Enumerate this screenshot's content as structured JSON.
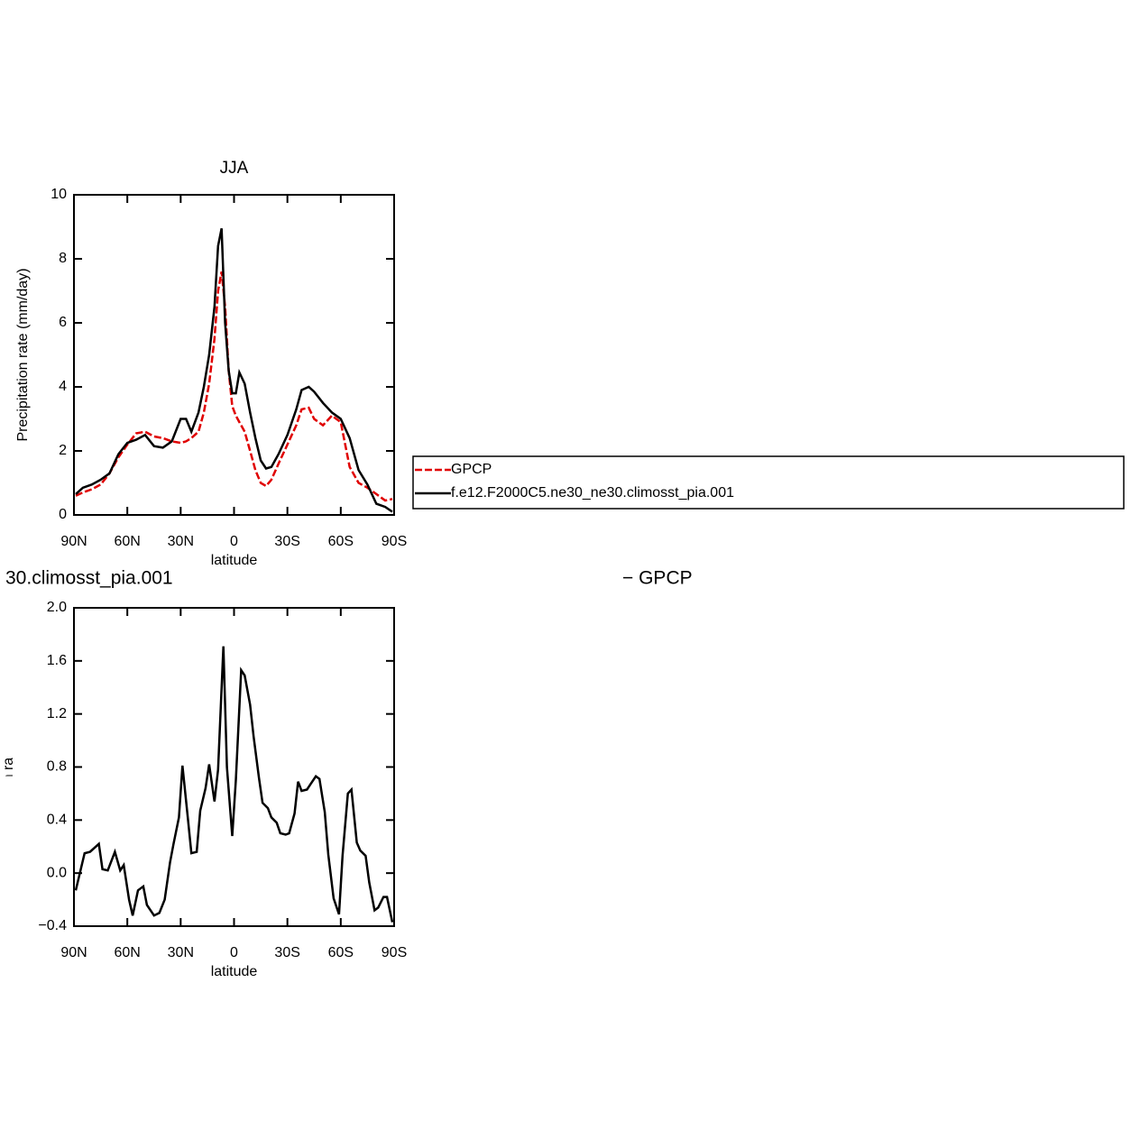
{
  "chart_data": [
    {
      "type": "line",
      "title": "JJA",
      "ylabel": "Precipitation rate (mm/day)",
      "xlabel": "latitude",
      "xlim": [
        90,
        -90
      ],
      "xticks": [
        {
          "value": 90,
          "label": "90N"
        },
        {
          "value": 60,
          "label": "60N"
        },
        {
          "value": 30,
          "label": "30N"
        },
        0,
        {
          "value": -30,
          "label": "30S"
        },
        {
          "value": -60,
          "label": "60S"
        },
        {
          "value": -90,
          "label": "90S"
        }
      ],
      "ylim": [
        0,
        10
      ],
      "yticks": [
        0,
        2,
        4,
        6,
        8,
        10
      ],
      "x": [
        89,
        85,
        80,
        75,
        70,
        65,
        60,
        55,
        50,
        45,
        40,
        35,
        30,
        27,
        24,
        20,
        17,
        14,
        11,
        9,
        7,
        5,
        3,
        1,
        -1,
        -3,
        -6,
        -9,
        -12,
        -15,
        -18,
        -21,
        -25,
        -30,
        -35,
        -38,
        -42,
        -45,
        -50,
        -55,
        -60,
        -65,
        -70,
        -75,
        -80,
        -85,
        -89
      ],
      "series": [
        {
          "name": "GPCP",
          "color": "#e00000",
          "dashed": true,
          "values": [
            0.6,
            0.7,
            0.8,
            0.95,
            1.3,
            1.8,
            2.2,
            2.55,
            2.6,
            2.45,
            2.4,
            2.3,
            2.25,
            2.3,
            2.4,
            2.6,
            3.2,
            4.1,
            5.5,
            7.0,
            7.6,
            6.5,
            4.5,
            3.4,
            3.1,
            2.9,
            2.6,
            2.0,
            1.4,
            1.0,
            0.9,
            1.1,
            1.6,
            2.2,
            2.8,
            3.3,
            3.35,
            3.0,
            2.8,
            3.1,
            2.9,
            1.5,
            1.0,
            0.85,
            0.65,
            0.45,
            0.5
          ]
        },
        {
          "name": "f.e12.F2000C5.ne30_ne30.climosst_pia.001",
          "color": "#000000",
          "dashed": false,
          "values": [
            0.65,
            0.85,
            0.95,
            1.1,
            1.3,
            1.9,
            2.25,
            2.35,
            2.5,
            2.15,
            2.1,
            2.3,
            3.0,
            3.0,
            2.6,
            3.2,
            4.0,
            5.0,
            6.5,
            8.4,
            8.95,
            6.0,
            4.5,
            3.8,
            3.8,
            4.45,
            4.1,
            3.2,
            2.4,
            1.7,
            1.45,
            1.5,
            1.9,
            2.5,
            3.3,
            3.9,
            4.0,
            3.85,
            3.5,
            3.2,
            3.0,
            2.4,
            1.4,
            0.95,
            0.35,
            0.25,
            0.1
          ]
        }
      ]
    },
    {
      "type": "line",
      "title": "30.climosst_pia.001",
      "subtitle": "− GPCP",
      "ylabel": "Precipitation rate (mm/day)",
      "xlabel": "latitude",
      "xlim": [
        90,
        -90
      ],
      "xticks": [
        {
          "value": 90,
          "label": "90N"
        },
        {
          "value": 60,
          "label": "60N"
        },
        {
          "value": 30,
          "label": "30N"
        },
        0,
        {
          "value": -30,
          "label": "30S"
        },
        {
          "value": -60,
          "label": "60S"
        },
        {
          "value": -90,
          "label": "90S"
        }
      ],
      "ylim": [
        -0.4,
        2.0
      ],
      "yticks": [
        {
          "value": -0.4,
          "label": "−0.4"
        },
        {
          "value": 0,
          "label": "0.0"
        },
        0.4,
        0.8,
        1.2,
        1.6,
        {
          "value": 2.0,
          "label": "2.0"
        }
      ],
      "x": [
        89,
        84,
        81,
        76,
        74,
        71,
        67,
        64,
        62,
        59,
        57,
        54,
        51,
        49,
        45,
        42,
        39,
        36,
        34,
        31,
        29,
        26,
        24,
        21,
        19,
        16,
        14,
        11,
        9,
        6,
        4,
        1,
        -1,
        -4,
        -6,
        -9,
        -11,
        -14,
        -16,
        -19,
        -21,
        -24,
        -26,
        -29,
        -31,
        -34,
        -36,
        -38,
        -41,
        -43,
        -46,
        -48,
        -51,
        -53,
        -56,
        -59,
        -61,
        -64,
        -66,
        -69,
        -71,
        -74,
        -76,
        -79,
        -81,
        -84,
        -86,
        -89
      ],
      "series": [
        {
          "color": "#000000",
          "dashed": false,
          "values": [
            -0.13,
            0.15,
            0.16,
            0.22,
            0.03,
            0.02,
            0.16,
            0.02,
            0.06,
            -0.2,
            -0.32,
            -0.13,
            -0.1,
            -0.24,
            -0.32,
            -0.3,
            -0.2,
            0.08,
            0.22,
            0.42,
            0.81,
            0.42,
            0.15,
            0.16,
            0.47,
            0.64,
            0.82,
            0.54,
            0.78,
            1.71,
            0.8,
            0.28,
            0.7,
            1.53,
            1.49,
            1.27,
            1.03,
            0.72,
            0.53,
            0.49,
            0.42,
            0.38,
            0.3,
            0.29,
            0.3,
            0.45,
            0.69,
            0.62,
            0.63,
            0.67,
            0.73,
            0.71,
            0.46,
            0.14,
            -0.19,
            -0.31,
            0.13,
            0.6,
            0.63,
            0.23,
            0.17,
            0.13,
            -0.07,
            -0.28,
            -0.26,
            -0.18,
            -0.18,
            -0.37
          ]
        }
      ]
    }
  ]
}
